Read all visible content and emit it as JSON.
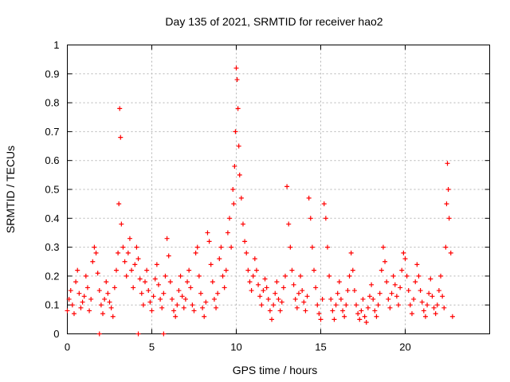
{
  "chart_data": {
    "type": "scatter",
    "title": "Day 135 of 2021, SRMTID for receiver hao2",
    "xlabel": "GPS time / hours",
    "ylabel": "SRMTID / TECUs",
    "xlim": [
      0,
      25
    ],
    "ylim": [
      0,
      1
    ],
    "grid": true,
    "marker": "plus",
    "color": "#ff0000",
    "xticks": [
      0,
      5,
      10,
      15,
      20
    ],
    "yticks": [
      0,
      0.1,
      0.2,
      0.3,
      0.4,
      0.5,
      0.6,
      0.7,
      0.8,
      0.9,
      1
    ],
    "xtick_labels": [
      "0",
      "5",
      "10",
      "15",
      "20"
    ],
    "ytick_labels": [
      "0",
      "0.1",
      "0.2",
      "0.3",
      "0.4",
      "0.5",
      "0.6",
      "0.7",
      "0.8",
      "0.9",
      "1"
    ],
    "series": [
      {
        "name": "hao2",
        "x": [
          0.0,
          0.1,
          0.2,
          0.3,
          0.4,
          0.5,
          0.6,
          0.7,
          0.8,
          0.9,
          1.0,
          1.1,
          1.2,
          1.3,
          1.4,
          1.5,
          1.6,
          1.7,
          1.8,
          1.9,
          2.0,
          2.1,
          2.2,
          2.3,
          2.4,
          2.5,
          2.6,
          2.7,
          2.8,
          2.9,
          3.0,
          3.05,
          3.1,
          3.15,
          3.2,
          3.3,
          3.4,
          3.5,
          3.6,
          3.7,
          3.8,
          3.9,
          4.0,
          4.1,
          4.2,
          4.3,
          4.4,
          4.5,
          4.6,
          4.7,
          4.8,
          4.9,
          5.0,
          5.1,
          5.2,
          5.3,
          5.4,
          5.5,
          5.6,
          5.7,
          5.8,
          5.9,
          6.0,
          6.1,
          6.2,
          6.3,
          6.4,
          6.5,
          6.6,
          6.7,
          6.8,
          6.9,
          7.0,
          7.1,
          7.2,
          7.3,
          7.4,
          7.5,
          7.6,
          7.7,
          7.8,
          7.9,
          8.0,
          8.1,
          8.2,
          8.3,
          8.4,
          8.5,
          8.6,
          8.7,
          8.8,
          8.9,
          9.0,
          9.1,
          9.2,
          9.3,
          9.4,
          9.5,
          9.6,
          9.7,
          9.8,
          9.85,
          9.9,
          9.95,
          10.0,
          10.05,
          10.1,
          10.15,
          10.2,
          10.3,
          10.4,
          10.5,
          10.6,
          10.7,
          10.8,
          10.9,
          11.0,
          11.1,
          11.2,
          11.3,
          11.4,
          11.5,
          11.6,
          11.7,
          11.8,
          11.9,
          12.0,
          12.1,
          12.2,
          12.3,
          12.4,
          12.5,
          12.6,
          12.7,
          12.8,
          12.9,
          13.0,
          13.1,
          13.2,
          13.3,
          13.4,
          13.5,
          13.6,
          13.7,
          13.8,
          13.9,
          14.0,
          14.1,
          14.2,
          14.3,
          14.4,
          14.5,
          14.6,
          14.7,
          14.8,
          14.9,
          15.0,
          15.1,
          15.2,
          15.3,
          15.4,
          15.5,
          15.6,
          15.7,
          15.8,
          15.9,
          16.0,
          16.1,
          16.2,
          16.3,
          16.4,
          16.5,
          16.6,
          16.7,
          16.8,
          16.9,
          17.0,
          17.1,
          17.2,
          17.3,
          17.4,
          17.5,
          17.6,
          17.7,
          17.8,
          17.9,
          18.0,
          18.1,
          18.2,
          18.3,
          18.4,
          18.5,
          18.6,
          18.7,
          18.8,
          18.9,
          19.0,
          19.1,
          19.2,
          19.3,
          19.4,
          19.5,
          19.6,
          19.7,
          19.8,
          19.9,
          20.0,
          20.1,
          20.2,
          20.3,
          20.4,
          20.5,
          20.6,
          20.7,
          20.8,
          20.9,
          21.0,
          21.1,
          21.2,
          21.3,
          21.4,
          21.5,
          21.6,
          21.7,
          21.8,
          21.9,
          22.0,
          22.1,
          22.2,
          22.3,
          22.4,
          22.45,
          22.5,
          22.55,
          22.6,
          22.7,
          22.8,
          1.9,
          4.2,
          5.7
        ],
        "y": [
          0.08,
          0.12,
          0.15,
          0.1,
          0.07,
          0.18,
          0.22,
          0.14,
          0.09,
          0.11,
          0.13,
          0.2,
          0.16,
          0.08,
          0.12,
          0.25,
          0.3,
          0.28,
          0.21,
          0.15,
          0.1,
          0.07,
          0.12,
          0.18,
          0.14,
          0.11,
          0.09,
          0.06,
          0.16,
          0.22,
          0.28,
          0.45,
          0.78,
          0.68,
          0.38,
          0.3,
          0.25,
          0.2,
          0.28,
          0.33,
          0.22,
          0.16,
          0.24,
          0.3,
          0.26,
          0.19,
          0.14,
          0.1,
          0.18,
          0.22,
          0.15,
          0.11,
          0.08,
          0.13,
          0.19,
          0.24,
          0.17,
          0.12,
          0.09,
          0.14,
          0.2,
          0.33,
          0.27,
          0.18,
          0.12,
          0.08,
          0.06,
          0.1,
          0.15,
          0.2,
          0.13,
          0.09,
          0.12,
          0.18,
          0.22,
          0.16,
          0.1,
          0.08,
          0.28,
          0.3,
          0.2,
          0.14,
          0.09,
          0.06,
          0.11,
          0.35,
          0.32,
          0.24,
          0.18,
          0.12,
          0.09,
          0.14,
          0.26,
          0.3,
          0.2,
          0.16,
          0.22,
          0.35,
          0.4,
          0.3,
          0.5,
          0.45,
          0.58,
          0.7,
          0.92,
          0.88,
          0.78,
          0.65,
          0.55,
          0.47,
          0.38,
          0.32,
          0.28,
          0.22,
          0.18,
          0.15,
          0.2,
          0.26,
          0.22,
          0.17,
          0.13,
          0.1,
          0.15,
          0.19,
          0.16,
          0.12,
          0.08,
          0.05,
          0.1,
          0.14,
          0.18,
          0.12,
          0.08,
          0.11,
          0.16,
          0.2,
          0.51,
          0.38,
          0.3,
          0.22,
          0.17,
          0.12,
          0.09,
          0.14,
          0.2,
          0.15,
          0.11,
          0.08,
          0.13,
          0.47,
          0.4,
          0.3,
          0.22,
          0.16,
          0.1,
          0.07,
          0.05,
          0.12,
          0.45,
          0.4,
          0.3,
          0.2,
          0.12,
          0.08,
          0.05,
          0.1,
          0.14,
          0.18,
          0.12,
          0.08,
          0.06,
          0.1,
          0.15,
          0.2,
          0.28,
          0.22,
          0.15,
          0.1,
          0.07,
          0.05,
          0.08,
          0.12,
          0.06,
          0.04,
          0.09,
          0.13,
          0.17,
          0.12,
          0.08,
          0.06,
          0.1,
          0.14,
          0.22,
          0.3,
          0.25,
          0.18,
          0.12,
          0.09,
          0.14,
          0.2,
          0.17,
          0.13,
          0.1,
          0.16,
          0.22,
          0.28,
          0.26,
          0.2,
          0.15,
          0.1,
          0.07,
          0.12,
          0.18,
          0.24,
          0.2,
          0.15,
          0.11,
          0.08,
          0.06,
          0.1,
          0.14,
          0.19,
          0.13,
          0.09,
          0.07,
          0.1,
          0.15,
          0.2,
          0.13,
          0.09,
          0.3,
          0.45,
          0.59,
          0.5,
          0.4,
          0.28,
          0.06,
          0.0,
          0.0,
          0.0
        ]
      }
    ]
  }
}
